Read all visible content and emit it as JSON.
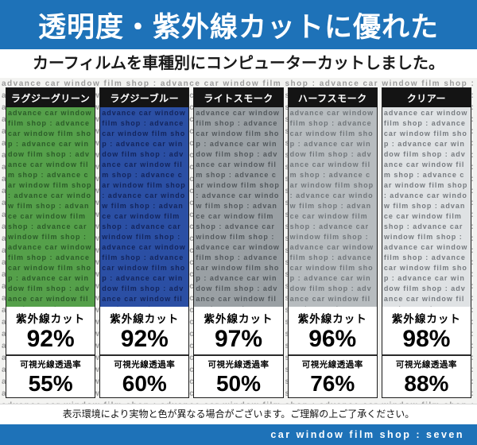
{
  "banner": {
    "title": "透明度・紫外線カットに優れた",
    "subtitle": "カーフィルムを車種別にコンピューターカットしました。",
    "bg_color": "#1e72b8"
  },
  "pattern_text": "advance car window film shop : ",
  "labels": {
    "uv_cut": "紫外線カット",
    "vlt": "可視光線透過率"
  },
  "products": [
    {
      "name": "ラグジーグリーン",
      "uv_cut": "92%",
      "vlt": "55%",
      "swatch_color": "#55a04a",
      "swatch_text_color": "rgba(15,45,18,0.60)"
    },
    {
      "name": "ラグジーブルー",
      "uv_cut": "92%",
      "vlt": "60%",
      "swatch_color": "#2b4fa4",
      "swatch_text_color": "rgba(6,14,52,0.65)"
    },
    {
      "name": "ライトスモーク",
      "uv_cut": "97%",
      "vlt": "50%",
      "swatch_color": "#9aa0a4",
      "swatch_text_color": "rgba(35,40,45,0.60)"
    },
    {
      "name": "ハーフスモーク",
      "uv_cut": "96%",
      "vlt": "76%",
      "swatch_color": "#b7bcbf",
      "swatch_text_color": "rgba(55,60,65,0.55)"
    },
    {
      "name": "クリアー",
      "uv_cut": "98%",
      "vlt": "88%",
      "swatch_color": "#dfe2e4",
      "swatch_text_color": "rgba(72,78,84,0.70)"
    }
  ],
  "footer": {
    "notice": "表示環境により実物と色が異なる場合がございます。ご理解の上ご了承ください。",
    "brand": "car window film shop : seven"
  }
}
